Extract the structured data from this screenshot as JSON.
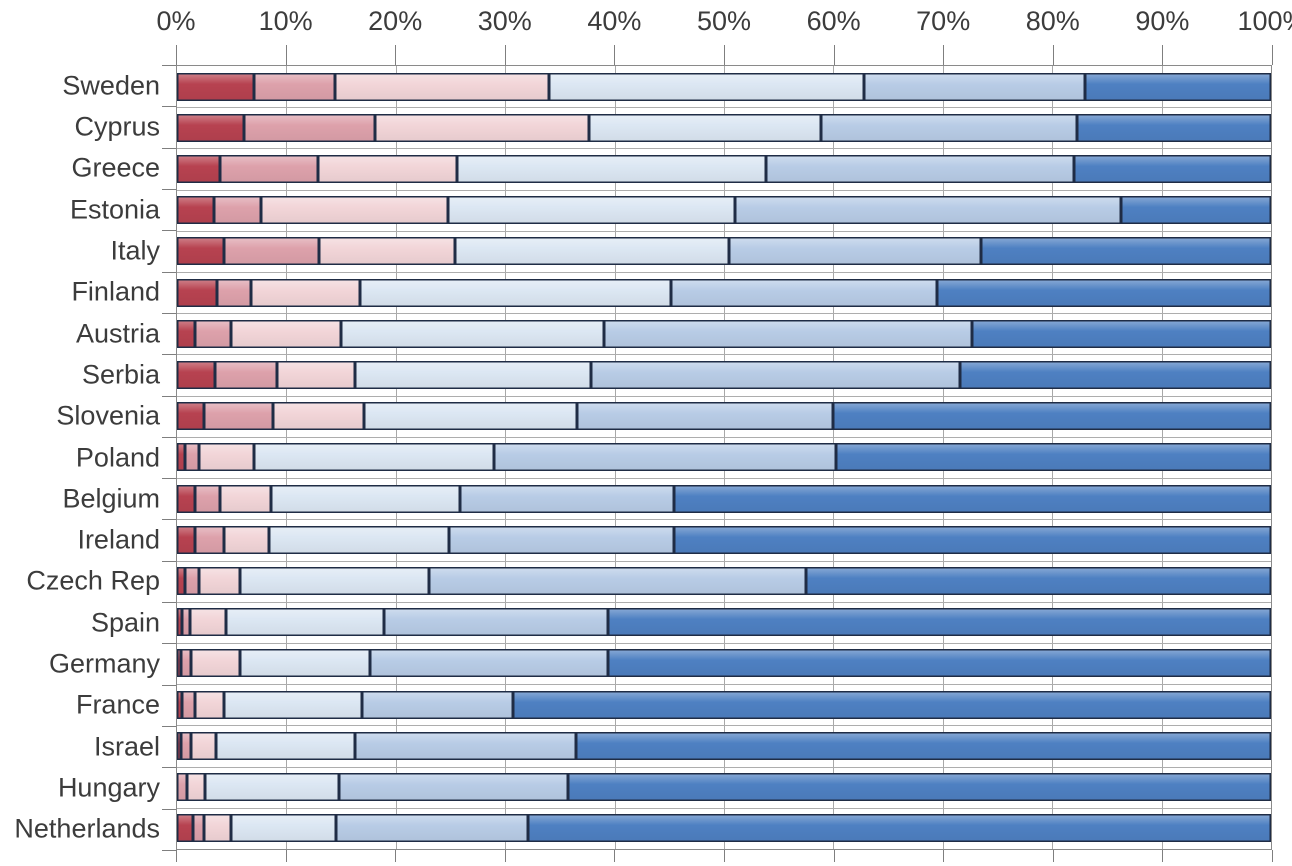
{
  "chart_data": {
    "type": "bar",
    "variant": "horizontal-stacked-100pct",
    "title": "",
    "xlabel": "",
    "ylabel": "",
    "axis_position": "top",
    "grid": true,
    "legend": "none",
    "xlim": [
      0,
      100
    ],
    "x_ticks": [
      "0%",
      "10%",
      "20%",
      "30%",
      "40%",
      "50%",
      "60%",
      "70%",
      "80%",
      "90%",
      "100%"
    ],
    "categories": [
      "Sweden",
      "Cyprus",
      "Greece",
      "Estonia",
      "Italy",
      "Finland",
      "Austria",
      "Serbia",
      "Slovenia",
      "Poland",
      "Belgium",
      "Ireland",
      "Czech Rep",
      "Spain",
      "Germany",
      "France",
      "Israel",
      "Hungary",
      "Netherlands"
    ],
    "series": [
      {
        "name": "dark-red",
        "color": "#b74250",
        "values": [
          7.0,
          6.1,
          3.9,
          3.4,
          4.3,
          3.7,
          1.6,
          3.5,
          2.5,
          0.7,
          1.6,
          1.6,
          0.7,
          0.5,
          0.4,
          0.5,
          0.4,
          0.0,
          1.5
        ]
      },
      {
        "name": "pink",
        "color": "#dda1ab",
        "values": [
          7.4,
          12.0,
          9.0,
          4.3,
          8.7,
          3.1,
          3.3,
          5.6,
          6.3,
          1.3,
          2.3,
          2.7,
          1.3,
          0.7,
          0.9,
          1.1,
          0.9,
          0.9,
          1.0
        ]
      },
      {
        "name": "light-pink",
        "color": "#f2d5d8",
        "values": [
          19.6,
          19.6,
          12.7,
          17.1,
          12.4,
          9.9,
          10.1,
          7.2,
          8.3,
          5.0,
          4.7,
          4.1,
          3.8,
          3.3,
          4.5,
          2.7,
          2.3,
          1.7,
          2.4
        ]
      },
      {
        "name": "pale-blue",
        "color": "#dce7f3",
        "values": [
          28.8,
          21.2,
          28.2,
          26.2,
          25.1,
          28.5,
          24.0,
          21.5,
          19.5,
          22.0,
          17.3,
          16.5,
          17.2,
          14.4,
          11.8,
          12.6,
          12.7,
          12.2,
          9.6
        ]
      },
      {
        "name": "medium-blue",
        "color": "#b8cce6",
        "values": [
          20.2,
          23.4,
          28.2,
          35.3,
          23.0,
          24.3,
          33.7,
          33.8,
          23.4,
          31.2,
          19.5,
          20.5,
          34.5,
          20.5,
          21.8,
          13.8,
          20.2,
          20.9,
          17.6
        ]
      },
      {
        "name": "dark-blue",
        "color": "#4e80c2",
        "values": [
          17.0,
          17.7,
          18.0,
          13.7,
          26.5,
          30.5,
          27.3,
          28.4,
          40.0,
          39.8,
          54.6,
          54.6,
          42.5,
          60.6,
          60.6,
          69.3,
          63.5,
          64.3,
          67.9
        ]
      }
    ],
    "colors_meta": {
      "segment_outline": "#1f2c45",
      "gridline": "#a8a8a8",
      "axis_line": "#8a8a8a",
      "text": "#3c3c3c"
    }
  }
}
